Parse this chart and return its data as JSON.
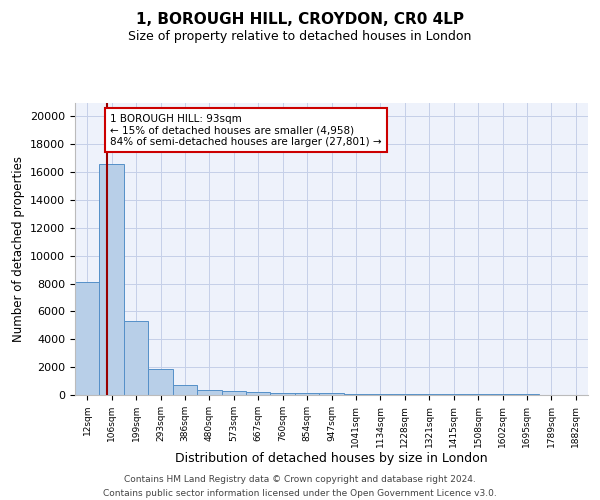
{
  "title": "1, BOROUGH HILL, CROYDON, CR0 4LP",
  "subtitle": "Size of property relative to detached houses in London",
  "xlabel": "Distribution of detached houses by size in London",
  "ylabel": "Number of detached properties",
  "categories": [
    "12sqm",
    "106sqm",
    "199sqm",
    "293sqm",
    "386sqm",
    "480sqm",
    "573sqm",
    "667sqm",
    "760sqm",
    "854sqm",
    "947sqm",
    "1041sqm",
    "1134sqm",
    "1228sqm",
    "1321sqm",
    "1415sqm",
    "1508sqm",
    "1602sqm",
    "1695sqm",
    "1789sqm",
    "1882sqm"
  ],
  "values": [
    8100,
    16600,
    5300,
    1850,
    700,
    330,
    280,
    180,
    160,
    130,
    110,
    90,
    80,
    70,
    60,
    55,
    50,
    45,
    40,
    35,
    30
  ],
  "bar_color": "#b8cfe8",
  "bar_edge_color": "#5590c8",
  "vline_color": "#990000",
  "annotation_text": "1 BOROUGH HILL: 93sqm\n← 15% of detached houses are smaller (4,958)\n84% of semi-detached houses are larger (27,801) →",
  "annotation_box_color": "white",
  "annotation_box_edge": "#cc0000",
  "ylim": [
    0,
    21000
  ],
  "yticks": [
    0,
    2000,
    4000,
    6000,
    8000,
    10000,
    12000,
    14000,
    16000,
    18000,
    20000
  ],
  "background_color": "#eef2fb",
  "grid_color": "#c5cfe8",
  "footer": "Contains HM Land Registry data © Crown copyright and database right 2024.\nContains public sector information licensed under the Open Government Licence v3.0.",
  "title_fontsize": 11,
  "subtitle_fontsize": 9,
  "xlabel_fontsize": 9,
  "ylabel_fontsize": 8.5
}
